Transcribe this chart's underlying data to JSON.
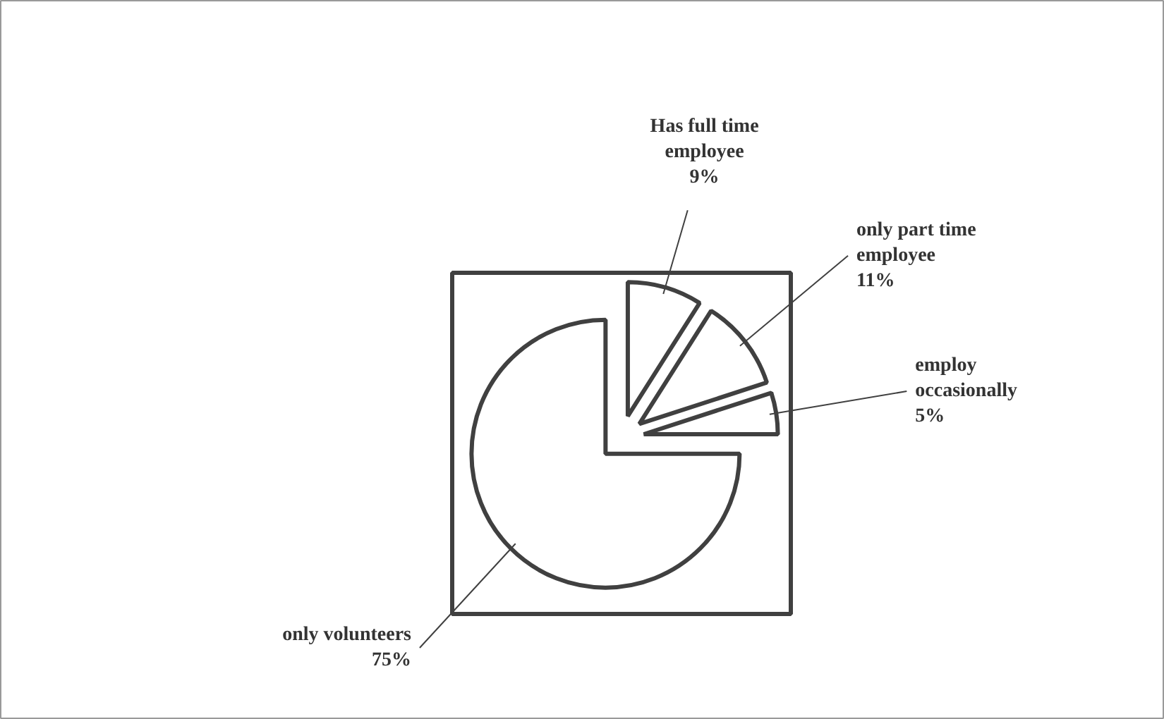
{
  "chart_data": {
    "type": "pie",
    "categories": [
      "Has full time employee",
      "only part time employee",
      "employ occasionally",
      "only volunteers"
    ],
    "values": [
      9,
      11,
      5,
      75
    ],
    "colors": [
      "#ffffff",
      "#ffffff",
      "#ffffff",
      "#ffffff"
    ],
    "value_labels": [
      "9%",
      "11%",
      "5%",
      "75%"
    ]
  }
}
